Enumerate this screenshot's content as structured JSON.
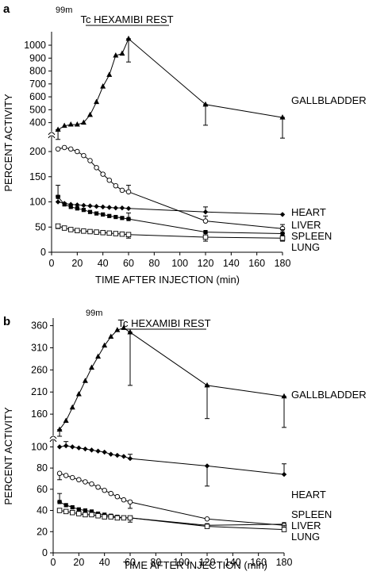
{
  "chart_data": [
    {
      "panel": "a",
      "type": "line",
      "title": "Tc HEXAMIBI REST",
      "title_superscript": "99m",
      "xlabel": "TIME  AFTER  INJECTION (min)",
      "ylabel": "PERCENT ACTIVITY",
      "xlim": [
        0,
        180
      ],
      "x_ticks": [
        0,
        20,
        40,
        60,
        80,
        100,
        120,
        140,
        160,
        180
      ],
      "y_break": true,
      "y_lower_range": [
        0,
        230
      ],
      "y_lower_ticks": [
        0,
        50,
        100,
        150,
        200
      ],
      "y_upper_range": [
        330,
        1080
      ],
      "y_upper_ticks": [
        400,
        500,
        600,
        700,
        800,
        900,
        1000
      ],
      "series": [
        {
          "name": "GALLBLADDER",
          "marker": "filled-triangle",
          "segment": "upper",
          "points": [
            [
              5,
              345
            ],
            [
              10,
              375
            ],
            [
              15,
              385
            ],
            [
              20,
              385
            ],
            [
              25,
              400
            ],
            [
              30,
              460
            ],
            [
              35,
              560
            ],
            [
              40,
              680
            ],
            [
              45,
              770
            ],
            [
              50,
              920
            ],
            [
              55,
              935
            ],
            [
              60,
              1050
            ],
            [
              120,
              540
            ],
            [
              180,
              440
            ]
          ],
          "error_bars": [
            [
              5,
              270,
              345
            ],
            [
              60,
              870,
              1050
            ],
            [
              120,
              380,
              540
            ],
            [
              180,
              280,
              440
            ]
          ]
        },
        {
          "name": "LIVER",
          "marker": "open-circle",
          "segment": "lower",
          "points": [
            [
              5,
              205
            ],
            [
              10,
              208
            ],
            [
              15,
              205
            ],
            [
              20,
              200
            ],
            [
              25,
              192
            ],
            [
              30,
              182
            ],
            [
              35,
              168
            ],
            [
              40,
              155
            ],
            [
              45,
              143
            ],
            [
              50,
              132
            ],
            [
              55,
              123
            ],
            [
              60,
              120
            ],
            [
              120,
              62
            ],
            [
              180,
              47
            ]
          ],
          "error_bars": [
            [
              60,
              120,
              133
            ],
            [
              120,
              62,
              72
            ],
            [
              180,
              47,
              55
            ]
          ]
        },
        {
          "name": "HEART",
          "marker": "filled-diamond",
          "segment": "lower",
          "points": [
            [
              5,
              100
            ],
            [
              10,
              97
            ],
            [
              15,
              95
            ],
            [
              20,
              94
            ],
            [
              25,
              93
            ],
            [
              30,
              92
            ],
            [
              35,
              91
            ],
            [
              40,
              90
            ],
            [
              45,
              89
            ],
            [
              50,
              88
            ],
            [
              55,
              88
            ],
            [
              60,
              87
            ],
            [
              120,
              80
            ],
            [
              180,
              75
            ]
          ],
          "error_bars": [
            [
              5,
              100,
              112
            ],
            [
              120,
              80,
              90
            ]
          ]
        },
        {
          "name": "SPLEEN",
          "marker": "filled-square",
          "segment": "lower",
          "points": [
            [
              5,
              110
            ],
            [
              10,
              95
            ],
            [
              15,
              90
            ],
            [
              20,
              87
            ],
            [
              25,
              84
            ],
            [
              30,
              80
            ],
            [
              35,
              77
            ],
            [
              40,
              75
            ],
            [
              45,
              72
            ],
            [
              50,
              70
            ],
            [
              55,
              68
            ],
            [
              60,
              66
            ],
            [
              120,
              40
            ],
            [
              180,
              37
            ]
          ],
          "error_bars": [
            [
              5,
              110,
              133
            ],
            [
              60,
              66,
              78
            ],
            [
              120,
              30,
              40
            ],
            [
              180,
              37,
              45
            ]
          ]
        },
        {
          "name": "LUNG",
          "marker": "open-square",
          "segment": "lower",
          "points": [
            [
              5,
              52
            ],
            [
              10,
              48
            ],
            [
              15,
              45
            ],
            [
              20,
              43
            ],
            [
              25,
              42
            ],
            [
              30,
              41
            ],
            [
              35,
              40
            ],
            [
              40,
              39
            ],
            [
              45,
              38
            ],
            [
              50,
              37
            ],
            [
              55,
              36
            ],
            [
              60,
              35
            ],
            [
              120,
              30
            ],
            [
              180,
              28
            ]
          ],
          "error_bars": [
            [
              5,
              47,
              55
            ],
            [
              60,
              28,
              35
            ],
            [
              120,
              22,
              30
            ],
            [
              180,
              22,
              28
            ]
          ]
        }
      ]
    },
    {
      "panel": "b",
      "type": "line",
      "title": "Tc HEXAMIBI REST",
      "title_superscript": "99m",
      "xlabel": "TIME  AFTER  INJECTION (min)",
      "ylabel": "PERCENT ACTIVITY",
      "xlim": [
        0,
        180
      ],
      "x_ticks": [
        0,
        20,
        40,
        60,
        80,
        100,
        120,
        140,
        160,
        180
      ],
      "y_break": true,
      "y_lower_range": [
        0,
        110
      ],
      "y_lower_ticks": [
        0,
        20,
        40,
        60,
        80,
        100
      ],
      "y_upper_range": [
        110,
        370
      ],
      "y_upper_ticks": [
        160,
        210,
        260,
        310,
        360
      ],
      "series": [
        {
          "name": "GALLBLADDER",
          "marker": "filled-triangle",
          "segment": "upper",
          "points": [
            [
              5,
              125
            ],
            [
              10,
              145
            ],
            [
              15,
              175
            ],
            [
              20,
              205
            ],
            [
              25,
              235
            ],
            [
              30,
              265
            ],
            [
              35,
              290
            ],
            [
              40,
              315
            ],
            [
              45,
              335
            ],
            [
              50,
              350
            ],
            [
              55,
              355
            ],
            [
              60,
              345
            ],
            [
              120,
              225
            ],
            [
              180,
              200
            ]
          ],
          "error_bars": [
            [
              5,
              110,
              125
            ],
            [
              60,
              225,
              345
            ],
            [
              120,
              150,
              225
            ],
            [
              180,
              130,
              200
            ]
          ]
        },
        {
          "name": "HEART",
          "marker": "filled-diamond",
          "segment": "lower",
          "points": [
            [
              5,
              100
            ],
            [
              10,
              101
            ],
            [
              15,
              100
            ],
            [
              20,
              99
            ],
            [
              25,
              98
            ],
            [
              30,
              97
            ],
            [
              35,
              96
            ],
            [
              40,
              95
            ],
            [
              45,
              93
            ],
            [
              50,
              92
            ],
            [
              55,
              91
            ],
            [
              60,
              89
            ],
            [
              120,
              82
            ],
            [
              180,
              74
            ]
          ],
          "error_bars": [
            [
              10,
              101,
              105
            ],
            [
              60,
              89,
              93
            ],
            [
              120,
              63,
              82
            ],
            [
              180,
              74,
              84
            ]
          ]
        },
        {
          "name": "SPLEEN",
          "marker": "filled-square",
          "segment": "lower",
          "points": [
            [
              5,
              48
            ],
            [
              10,
              45
            ],
            [
              15,
              43
            ],
            [
              20,
              41
            ],
            [
              25,
              40
            ],
            [
              30,
              39
            ],
            [
              35,
              37
            ],
            [
              40,
              36
            ],
            [
              45,
              35
            ],
            [
              50,
              34
            ],
            [
              55,
              33
            ],
            [
              60,
              33
            ],
            [
              120,
              26
            ],
            [
              180,
              27
            ]
          ],
          "error_bars": [
            [
              5,
              48,
              56
            ],
            [
              60,
              29,
              33
            ]
          ]
        },
        {
          "name": "LIVER",
          "marker": "open-circle",
          "segment": "lower",
          "points": [
            [
              5,
              75
            ],
            [
              10,
              73
            ],
            [
              15,
              71
            ],
            [
              20,
              69
            ],
            [
              25,
              67
            ],
            [
              30,
              65
            ],
            [
              35,
              62
            ],
            [
              40,
              59
            ],
            [
              45,
              56
            ],
            [
              50,
              53
            ],
            [
              55,
              50
            ],
            [
              60,
              48
            ],
            [
              120,
              32
            ],
            [
              180,
              26
            ]
          ],
          "error_bars": [
            [
              5,
              69,
              75
            ],
            [
              60,
              42,
              48
            ]
          ]
        },
        {
          "name": "LUNG",
          "marker": "open-square",
          "segment": "lower",
          "points": [
            [
              5,
              40
            ],
            [
              10,
              39
            ],
            [
              15,
              38
            ],
            [
              20,
              37
            ],
            [
              25,
              36
            ],
            [
              30,
              36
            ],
            [
              35,
              35
            ],
            [
              40,
              34
            ],
            [
              45,
              34
            ],
            [
              50,
              33
            ],
            [
              55,
              33
            ],
            [
              60,
              33
            ],
            [
              120,
              25
            ],
            [
              180,
              22
            ]
          ],
          "error_bars": [
            [
              180,
              22,
              26
            ]
          ]
        }
      ]
    }
  ]
}
